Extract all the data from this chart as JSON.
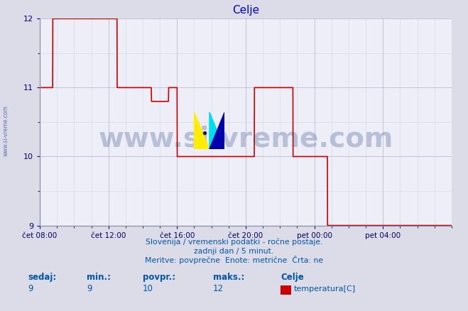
{
  "title": "Celje",
  "title_color": "#0000cc",
  "bg_color": "#dcdce8",
  "plot_bg_color": "#eeeef8",
  "line_color": "#cc0000",
  "line_width": 1.2,
  "grid_color_major": "#aaaacc",
  "grid_color_minor": "#ccccdd",
  "ymin": 9,
  "ymax": 12,
  "yticks": [
    9,
    10,
    11,
    12
  ],
  "ylabel_color": "#000066",
  "xlabel_color": "#000066",
  "xtick_labels": [
    "čet 08:00",
    "čet 12:00",
    "čet 16:00",
    "čet 20:00",
    "pet 00:00",
    "pet 04:00"
  ],
  "xtick_positions": [
    0,
    4,
    8,
    12,
    16,
    20
  ],
  "total_hours": 24,
  "watermark_text": "www.si-vreme.com",
  "watermark_color": "#1a3a7a",
  "watermark_alpha": 0.25,
  "footer_line1": "Slovenija / vremenski podatki - ročne postaje.",
  "footer_line2": "zadnji dan / 5 minut.",
  "footer_line3": "Meritve: povprečne  Enote: metrične  Črta: ne",
  "footer_color": "#0055aa",
  "label_sedaj": "sedaj:",
  "label_min": "min.:",
  "label_povpr": "povpr.:",
  "label_maks": "maks.:",
  "label_station": "Celje",
  "val_sedaj": "9",
  "val_min": "9",
  "val_povpr": "10",
  "val_maks": "12",
  "legend_label": "temperatura[C]",
  "legend_color": "#cc0000",
  "sidewatermark": "www.si-vreme.com",
  "time_data": [
    0.0,
    0.75,
    0.76,
    1.0,
    4.5,
    4.51,
    4.75,
    6.5,
    6.51,
    7.5,
    7.51,
    7.75,
    8.0,
    8.01,
    12.5,
    12.51,
    13.5,
    13.51,
    14.75,
    14.76,
    15.5,
    16.76,
    16.77,
    24.0
  ],
  "temp_data": [
    11.0,
    11.0,
    12.0,
    12.0,
    12.0,
    11.0,
    11.0,
    11.0,
    10.8,
    10.8,
    11.0,
    11.0,
    11.0,
    10.0,
    10.0,
    11.0,
    11.0,
    11.0,
    11.0,
    10.0,
    10.0,
    10.0,
    9.0,
    9.0
  ]
}
